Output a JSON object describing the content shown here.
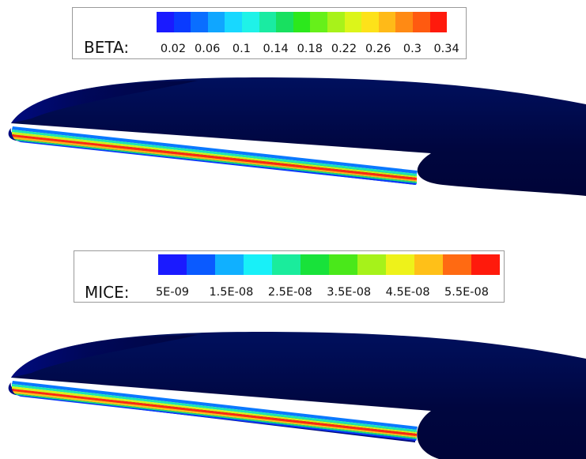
{
  "legends": {
    "beta": {
      "label": "BETA:",
      "ticks": [
        "0.02",
        "0.06",
        "0.1",
        "0.14",
        "0.18",
        "0.22",
        "0.26",
        "0.3",
        "0.34"
      ],
      "colors": [
        "#1a1aff",
        "#0a3bff",
        "#0a6eff",
        "#10a6ff",
        "#18d8ff",
        "#1ff2e8",
        "#1aeba2",
        "#18e060",
        "#2ce81c",
        "#66f01a",
        "#a8f21a",
        "#dcf51a",
        "#fde21a",
        "#ffba18",
        "#ff8a14",
        "#ff5a10",
        "#ff1a0c"
      ]
    },
    "mice": {
      "label": "MICE:",
      "ticks": [
        "5E-09",
        "1.5E-08",
        "2.5E-08",
        "3.5E-08",
        "4.5E-08",
        "5.5E-08"
      ],
      "colors": [
        "#1a1aff",
        "#0a5aff",
        "#10b0ff",
        "#18f0f8",
        "#1aec9c",
        "#18e23a",
        "#4ae81a",
        "#a6f21a",
        "#eef21a",
        "#ffc018",
        "#ff6a12",
        "#ff1a0c"
      ]
    }
  },
  "colors": {
    "wing_dark": "#00004a",
    "wing_mid": "#00086e",
    "background": "#ffffff"
  }
}
